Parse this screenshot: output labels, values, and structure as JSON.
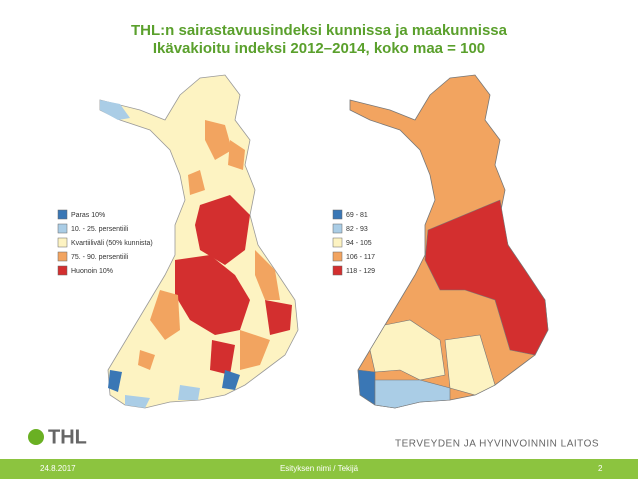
{
  "title": "THL:n sairastavuusindeksi kunnissa ja maakunnissa",
  "subtitle": "Ikävakioitu indeksi 2012–2014, koko maa = 100",
  "legends": [
    {
      "items": [
        {
          "label": "Paras 10%",
          "color": "#3a77b5"
        },
        {
          "label": "10. - 25. persentiili",
          "color": "#aacde6"
        },
        {
          "label": "Kvartiiliväli (50% kunnista)",
          "color": "#fdf3c2"
        },
        {
          "label": "75. - 90. persentiili",
          "color": "#f2a460"
        },
        {
          "label": "Huonoin 10%",
          "color": "#d32f2f"
        }
      ]
    },
    {
      "items": [
        {
          "label": "69 - 81",
          "color": "#3a77b5"
        },
        {
          "label": "82 - 93",
          "color": "#aacde6"
        },
        {
          "label": "94 - 105",
          "color": "#fdf3c2"
        },
        {
          "label": "106 - 117",
          "color": "#f2a460"
        },
        {
          "label": "118 - 129",
          "color": "#d32f2f"
        }
      ]
    }
  ],
  "logo": "THL",
  "organization": "TERVEYDEN JA HYVINVOINNIN LAITOS",
  "footer": {
    "date": "24.8.2017",
    "presentation": "Esityksen nimi / Tekijä",
    "page": "2"
  }
}
